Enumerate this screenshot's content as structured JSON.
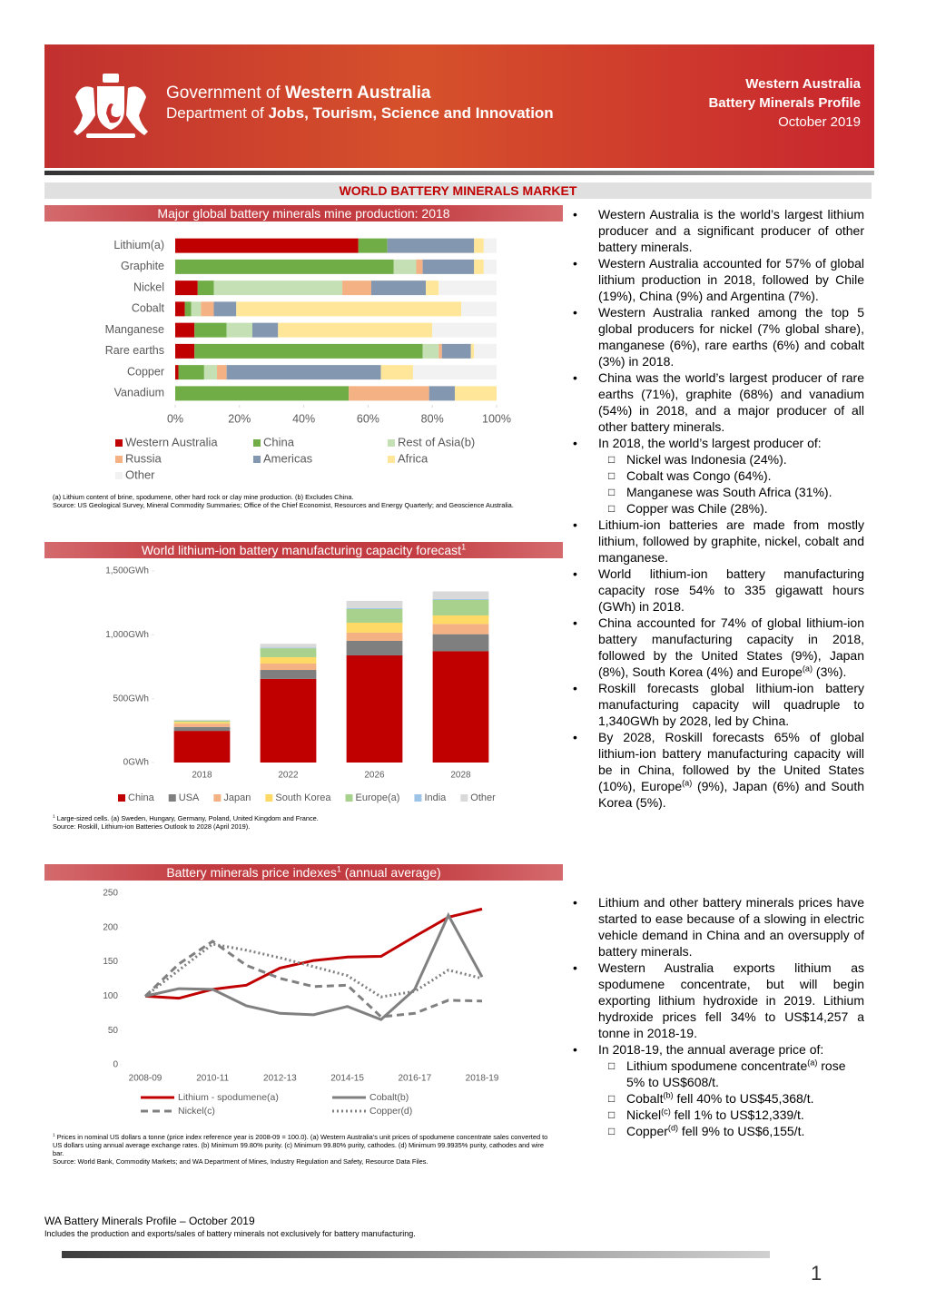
{
  "header": {
    "org": [
      "Government of ",
      {
        "b": "Western Australia"
      }
    ],
    "department": [
      "Department of ",
      {
        "b": "Jobs, Tourism, Science and Innovation"
      }
    ],
    "title": [
      "Western Australia",
      "Battery Minerals Profile"
    ],
    "date": "October 2019"
  },
  "section_title": "WORLD BATTERY MINERALS MARKET",
  "chart_data": [
    {
      "type": "bar",
      "orientation": "horizontal",
      "stacked": true,
      "title": "Major global battery minerals mine production: 2018",
      "categories": [
        "Lithium(a)",
        "Graphite",
        "Nickel",
        "Cobalt",
        "Manganese",
        "Rare earths",
        "Copper",
        "Vanadium"
      ],
      "series": [
        {
          "name": "Western Australia",
          "color": "#c00000",
          "values": [
            57,
            0,
            7,
            3,
            6,
            6,
            1,
            0
          ]
        },
        {
          "name": "China",
          "color": "#70ad47",
          "values": [
            9,
            68,
            5,
            2,
            10,
            71,
            8,
            54
          ]
        },
        {
          "name": "Rest of Asia(b)",
          "color": "#c5e0b4",
          "values": [
            0,
            7,
            40,
            3,
            8,
            5,
            4,
            0
          ]
        },
        {
          "name": "Russia",
          "color": "#f4b183",
          "values": [
            0,
            2,
            9,
            4,
            0,
            1,
            3,
            25
          ]
        },
        {
          "name": "Americas",
          "color": "#8497b0",
          "values": [
            27,
            16,
            17,
            7,
            8,
            9,
            48,
            8
          ]
        },
        {
          "name": "Africa",
          "color": "#ffe699",
          "values": [
            3,
            3,
            4,
            70,
            48,
            1,
            10,
            13
          ]
        },
        {
          "name": "Other",
          "color": "#f2f2f2",
          "values": [
            4,
            4,
            18,
            11,
            20,
            7,
            26,
            0
          ]
        }
      ],
      "xlim": [
        0,
        100
      ],
      "xticks": [
        {
          "value": 0,
          "label": "0%"
        },
        {
          "value": 20,
          "label": "20%"
        },
        {
          "value": 40,
          "label": "40%"
        },
        {
          "value": 60,
          "label": "60%"
        },
        {
          "value": 80,
          "label": "80%"
        },
        {
          "value": 100,
          "label": "100%"
        }
      ],
      "notes": [
        "(a) Lithium content of brine, spodumene, other hard rock or clay mine production. (b) Excludes China.",
        "Source: US Geological Survey, Mineral Commodity Summaries; Office of the Chief Economist, Resources and Energy Quarterly; and Geoscience Australia."
      ]
    },
    {
      "type": "bar",
      "orientation": "vertical",
      "stacked": true,
      "title": [
        "World lithium-ion battery manufacturing capacity forecast",
        {
          "sup": "1"
        }
      ],
      "categories": [
        "2018",
        "2022",
        "2026",
        "2028"
      ],
      "series": [
        {
          "name": "China",
          "color": "#c00000",
          "values": [
            248,
            655,
            839,
            871
          ]
        },
        {
          "name": "USA",
          "color": "#7f7f7f",
          "values": [
            30,
            70,
            114,
            134
          ]
        },
        {
          "name": "Japan",
          "color": "#f4b183",
          "values": [
            27,
            50,
            64,
            80
          ]
        },
        {
          "name": "South Korea",
          "color": "#ffd966",
          "values": [
            13,
            50,
            78,
            67
          ]
        },
        {
          "name": "Europe(a)",
          "color": "#a9d18e",
          "values": [
            10,
            70,
            107,
            121
          ]
        },
        {
          "name": "India",
          "color": "#9dc3e6",
          "values": [
            0,
            5,
            7,
            7
          ]
        },
        {
          "name": "Other",
          "color": "#d9d9d9",
          "values": [
            7,
            30,
            57,
            60
          ]
        }
      ],
      "ylim": [
        0,
        1500
      ],
      "yticks": [
        {
          "value": 0,
          "label": "0GWh"
        },
        {
          "value": 500,
          "label": "500GWh"
        },
        {
          "value": 1000,
          "label": "1,000GWh"
        },
        {
          "value": 1500,
          "label": "1,500GWh"
        }
      ],
      "notes": [
        [
          {
            "sup": "1"
          },
          " Large-sized cells. (a) Sweden, Hungary, Germany, Poland, United Kingdom and France."
        ],
        "Source: Roskill, Lithium-ion Batteries Outlook to 2028 (April 2019)."
      ]
    },
    {
      "type": "line",
      "title": [
        "Battery minerals price indexes",
        {
          "sup": "1"
        },
        " (annual average)"
      ],
      "categories": [
        "2008-09",
        null,
        "2010-11",
        null,
        "2012-13",
        null,
        "2014-15",
        null,
        "2016-17",
        null,
        "2018-19"
      ],
      "series": [
        {
          "name": "Lithium - spodumene(a)",
          "color": "#c00000",
          "line_style": "solid",
          "values": [
            100,
            97,
            110,
            116,
            141,
            152,
            157,
            158,
            187,
            215,
            227
          ]
        },
        {
          "name": "Cobalt(b)",
          "color": "#808080",
          "line_style": "solid",
          "values": [
            100,
            111,
            110,
            86,
            75,
            73,
            85,
            66,
            110,
            218,
            128
          ]
        },
        {
          "name": "Nickel(c)",
          "color": "#808080",
          "line_style": "dashed",
          "values": [
            100,
            147,
            180,
            145,
            126,
            114,
            116,
            70,
            75,
            94,
            93
          ]
        },
        {
          "name": "Copper(d)",
          "color": "#808080",
          "line_style": "dotted",
          "values": [
            100,
            138,
            176,
            167,
            156,
            143,
            130,
            99,
            107,
            138,
            126
          ]
        }
      ],
      "ylim": [
        0,
        250
      ],
      "yticks": [
        0,
        50,
        100,
        150,
        200,
        250
      ],
      "notes": [
        [
          {
            "sup": "1"
          },
          " Prices in nominal US dollars a tonne (price index reference year is 2008-09 = 100.0). (a) Western Australia’s unit prices of spodumene concentrate sales converted to US dollars using annual average exchange rates. (b) Minimum 99.80% purity. (c) Minimum 99.80% purity, cathodes. (d) Minimum 99.9935% purity, cathodes and wire bar."
        ],
        "Source: World Bank, Commodity Markets; and WA Department of Mines, Industry Regulation and Safety, Resource Data Files."
      ]
    }
  ],
  "bullets_production": [
    {
      "text": "Western Australia is the world’s largest lithium producer and a significant producer of other battery minerals."
    },
    {
      "text": "Western Australia accounted for 57% of global lithium production in 2018, followed by Chile (19%), China (9%) and Argentina (7%)."
    },
    {
      "text": "Western Australia ranked among the top 5 global producers for nickel (7% global share), manganese (6%), rare earths (6%) and cobalt (3%) in 2018."
    },
    {
      "text": "China was the world’s largest producer of rare earths (71%), graphite (68%) and vanadium (54%) in 2018, and a major producer of all other battery minerals."
    },
    {
      "text": "In 2018, the world’s largest producer of:",
      "sub": [
        "Nickel was Indonesia (24%).",
        "Cobalt was Congo (64%).",
        "Manganese was South Africa (31%).",
        "Copper was Chile (28%)."
      ]
    },
    {
      "text": "Lithium-ion batteries are made from mostly lithium, followed by graphite, nickel, cobalt and manganese."
    },
    {
      "text": "World lithium-ion battery manufacturing capacity rose 54% to 335 gigawatt hours (GWh) in 2018."
    },
    {
      "text": [
        "China accounted for 74% of global lithium-ion battery manufacturing capacity in 2018, followed by the United States (9%), Japan (8%), South Korea (4%) and Europe",
        {
          "sup": "(a)"
        },
        " (3%)."
      ]
    },
    {
      "text": "Roskill forecasts global lithium-ion battery manufacturing capacity will quadruple to 1,340GWh by 2028, led by China."
    },
    {
      "text": [
        "By 2028, Roskill forecasts 65% of global lithium-ion battery manufacturing capacity will be in China, followed by the United States (10%), Europe",
        {
          "sup": "(a)"
        },
        " (9%), Japan (6%) and South Korea (5%)."
      ]
    }
  ],
  "bullets_prices": [
    {
      "text": "Lithium and other battery minerals prices have started to ease because of a slowing in electric vehicle demand in China and an oversupply of battery minerals."
    },
    {
      "text": "Western Australia exports lithium as spodumene concentrate, but will begin exporting lithium hydroxide in 2019. Lithium hydroxide prices fell 34% to US$14,257 a tonne in 2018-19."
    },
    {
      "text": "In 2018-19, the annual average price of:",
      "sub": [
        [
          "Lithium spodumene concentrate",
          {
            "sup": "(a)"
          },
          " rose 5% to US$608/t."
        ],
        [
          "Cobalt",
          {
            "sup": "(b)"
          },
          " fell 40% to US$45,368/t."
        ],
        [
          "Nickel",
          {
            "sup": "(c)"
          },
          " fell 1% to US$12,339/t."
        ],
        [
          "Copper",
          {
            "sup": "(d)"
          },
          " fell 9% to US$6,155/t."
        ]
      ]
    }
  ],
  "footer": {
    "title": "WA Battery Minerals Profile – October 2019",
    "note": "Includes the production and exports/sales of battery minerals not exclusively for battery manufacturing.",
    "page": "1"
  }
}
